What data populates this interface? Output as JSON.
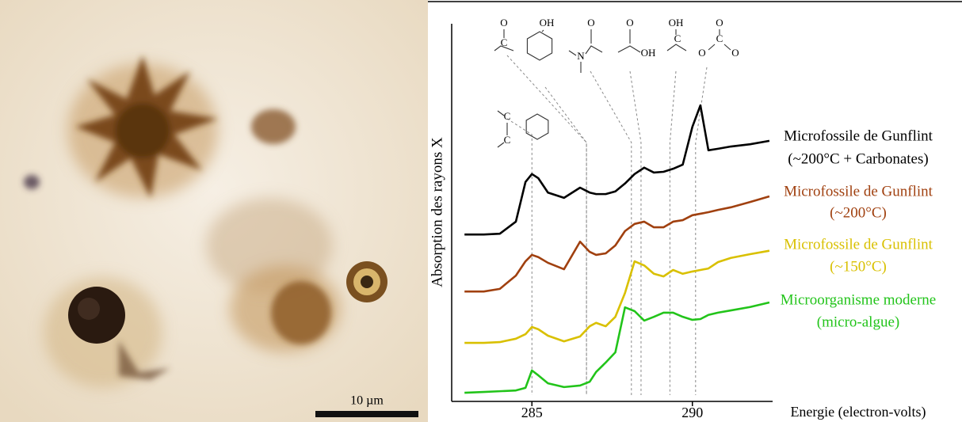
{
  "image": {
    "scale_bar_label": "10 µm"
  },
  "chart_data": {
    "type": "line",
    "y_label": "Absorption des rayons X",
    "x_label": "Energie (electron-volts)",
    "xlim": [
      282.5,
      292.5
    ],
    "xticks": [
      285,
      290
    ],
    "ylim": [
      0,
      100
    ],
    "x": [
      282.9,
      283.5,
      284.0,
      284.5,
      284.8,
      285.0,
      285.2,
      285.5,
      286.0,
      286.5,
      286.8,
      287.0,
      287.3,
      287.6,
      287.9,
      288.2,
      288.5,
      288.8,
      289.1,
      289.4,
      289.7,
      290.0,
      290.25,
      290.5,
      290.8,
      291.2,
      291.8,
      292.4
    ],
    "series": [
      {
        "name": [
          "Microfossile de Gunflint",
          "(~200°C + Carbonates)"
        ],
        "color": "#000000",
        "values": [
          44.2,
          44.2,
          44.4,
          47.6,
          58.1,
          60.2,
          59.1,
          55.3,
          53.9,
          56.6,
          55.3,
          54.9,
          54.9,
          55.6,
          57.7,
          60.2,
          61.9,
          60.6,
          60.8,
          61.6,
          62.7,
          72.7,
          78.4,
          66.5,
          66.9,
          67.5,
          68.1,
          69.0
        ]
      },
      {
        "name": [
          "Microfossile de Gunflint",
          "(~200°C)"
        ],
        "color": "#a0400f",
        "values": [
          29.1,
          29.1,
          29.8,
          33.3,
          37.1,
          38.8,
          38.2,
          36.7,
          35.0,
          42.3,
          39.6,
          38.8,
          39.2,
          41.3,
          45.1,
          47.0,
          47.6,
          46.1,
          46.1,
          47.6,
          48.0,
          49.3,
          49.7,
          50.1,
          50.7,
          51.4,
          52.8,
          54.3
        ]
      },
      {
        "name": [
          "Microfossile de Gunflint",
          "(~150°C)"
        ],
        "color": "#d9c000",
        "values": [
          15.5,
          15.5,
          15.7,
          16.6,
          17.8,
          19.7,
          19.1,
          17.4,
          15.9,
          17.2,
          19.9,
          20.8,
          19.9,
          22.4,
          28.7,
          37.1,
          36.0,
          33.8,
          33.1,
          34.8,
          33.8,
          34.4,
          34.8,
          35.2,
          36.9,
          38.0,
          39.0,
          39.9
        ]
      },
      {
        "name": [
          "Microorganisme moderne",
          "(micro-algue)"
        ],
        "color": "#22c41a",
        "values": [
          2.3,
          2.5,
          2.7,
          2.9,
          3.6,
          8.2,
          6.9,
          4.8,
          3.8,
          4.2,
          5.2,
          7.8,
          10.3,
          13.0,
          24.9,
          23.9,
          21.4,
          22.4,
          23.5,
          23.5,
          22.4,
          21.6,
          21.8,
          22.9,
          23.5,
          24.1,
          25.0,
          26.2
        ]
      }
    ],
    "annotations": [
      {
        "x": 285.0,
        "atoms": [
          "C",
          "C"
        ]
      },
      {
        "x": 286.7,
        "atoms": [
          "O",
          "C"
        ]
      },
      {
        "x": 286.7,
        "atoms": [
          "OH"
        ]
      },
      {
        "x": 288.1,
        "atoms": [
          "O",
          "N"
        ]
      },
      {
        "x": 288.4,
        "atoms": [
          "O",
          "OH"
        ]
      },
      {
        "x": 289.3,
        "atoms": [
          "OH",
          "C"
        ]
      },
      {
        "x": 290.1,
        "atoms": [
          "O",
          "C",
          "O",
          "O"
        ]
      }
    ]
  }
}
